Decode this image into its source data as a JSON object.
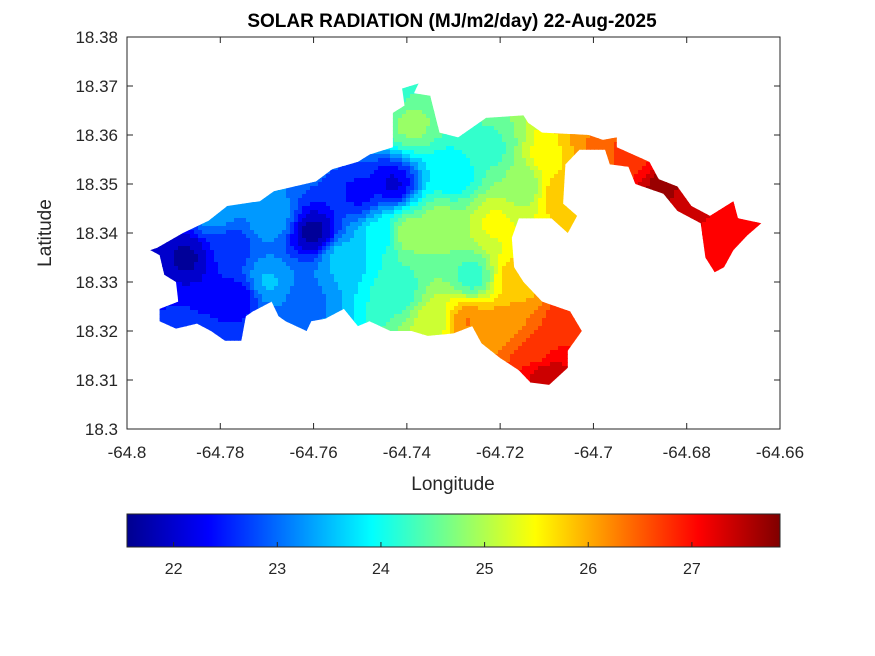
{
  "chart_data": {
    "type": "heatmap",
    "title": "SOLAR RADIATION (MJ/m2/day) 22-Aug-2025",
    "xlabel": "Longitude",
    "ylabel": "Latitude",
    "xlim": [
      -64.8,
      -64.66
    ],
    "ylim": [
      18.3,
      18.38
    ],
    "xticks": [
      -64.8,
      -64.78,
      -64.76,
      -64.74,
      -64.72,
      -64.7,
      -64.68,
      -64.66
    ],
    "xtick_labels": [
      "-64.8",
      "-64.78",
      "-64.76",
      "-64.74",
      "-64.72",
      "-64.7",
      "-64.68",
      "-64.66"
    ],
    "yticks": [
      18.3,
      18.31,
      18.32,
      18.33,
      18.34,
      18.35,
      18.36,
      18.37,
      18.38
    ],
    "ytick_labels": [
      "18.3",
      "18.31",
      "18.32",
      "18.33",
      "18.34",
      "18.35",
      "18.36",
      "18.37",
      "18.38"
    ],
    "grid": false,
    "colormap": "jet",
    "colorbar": {
      "orientation": "horizontal",
      "location": "bottom",
      "range": [
        21.55,
        27.85
      ],
      "ticks": [
        22,
        23,
        24,
        25,
        26,
        27
      ],
      "tick_labels": [
        "22",
        "23",
        "24",
        "25",
        "26",
        "27"
      ]
    },
    "field_samples": [
      {
        "lon": -64.787,
        "lat": 18.335,
        "value": 21.8
      },
      {
        "lon": -64.776,
        "lat": 18.327,
        "value": 22.3
      },
      {
        "lon": -64.778,
        "lat": 18.337,
        "value": 22.6
      },
      {
        "lon": -64.789,
        "lat": 18.323,
        "value": 22.5
      },
      {
        "lon": -64.781,
        "lat": 18.344,
        "value": 23.3
      },
      {
        "lon": -64.769,
        "lat": 18.343,
        "value": 23.4
      },
      {
        "lon": -64.77,
        "lat": 18.33,
        "value": 23.5
      },
      {
        "lon": -64.76,
        "lat": 18.34,
        "value": 21.7
      },
      {
        "lon": -64.762,
        "lat": 18.326,
        "value": 23.0
      },
      {
        "lon": -64.75,
        "lat": 18.348,
        "value": 22.4
      },
      {
        "lon": -64.743,
        "lat": 18.35,
        "value": 22.1
      },
      {
        "lon": -64.754,
        "lat": 18.335,
        "value": 23.6
      },
      {
        "lon": -64.745,
        "lat": 18.34,
        "value": 23.9
      },
      {
        "lon": -64.74,
        "lat": 18.34,
        "value": 25.0
      },
      {
        "lon": -64.742,
        "lat": 18.328,
        "value": 24.2
      },
      {
        "lon": -64.739,
        "lat": 18.362,
        "value": 24.8
      },
      {
        "lon": -64.744,
        "lat": 18.369,
        "value": 24.2
      },
      {
        "lon": -64.73,
        "lat": 18.352,
        "value": 23.8
      },
      {
        "lon": -64.733,
        "lat": 18.342,
        "value": 24.9
      },
      {
        "lon": -64.726,
        "lat": 18.331,
        "value": 24.2
      },
      {
        "lon": -64.734,
        "lat": 18.322,
        "value": 25.2
      },
      {
        "lon": -64.727,
        "lat": 18.322,
        "value": 26.3
      },
      {
        "lon": -64.722,
        "lat": 18.357,
        "value": 24.3
      },
      {
        "lon": -64.715,
        "lat": 18.35,
        "value": 24.7
      },
      {
        "lon": -64.721,
        "lat": 18.342,
        "value": 25.4
      },
      {
        "lon": -64.717,
        "lat": 18.331,
        "value": 25.8
      },
      {
        "lon": -64.719,
        "lat": 18.321,
        "value": 26.2
      },
      {
        "lon": -64.709,
        "lat": 18.355,
        "value": 25.6
      },
      {
        "lon": -64.707,
        "lat": 18.348,
        "value": 25.9
      },
      {
        "lon": -64.712,
        "lat": 18.315,
        "value": 26.8
      },
      {
        "lon": -64.71,
        "lat": 18.311,
        "value": 27.5
      },
      {
        "lon": -64.705,
        "lat": 18.322,
        "value": 26.9
      },
      {
        "lon": -64.7,
        "lat": 18.357,
        "value": 26.3
      },
      {
        "lon": -64.692,
        "lat": 18.356,
        "value": 26.8
      },
      {
        "lon": -64.685,
        "lat": 18.349,
        "value": 27.7
      },
      {
        "lon": -64.68,
        "lat": 18.346,
        "value": 27.3
      },
      {
        "lon": -64.67,
        "lat": 18.34,
        "value": 27.1
      },
      {
        "lon": -64.673,
        "lat": 18.334,
        "value": 27.2
      }
    ],
    "region_outline": [
      [
        -64.7935,
        18.337
      ],
      [
        -64.788,
        18.34
      ],
      [
        -64.7825,
        18.3425
      ],
      [
        -64.7785,
        18.3455
      ],
      [
        -64.7715,
        18.3465
      ],
      [
        -64.7685,
        18.3485
      ],
      [
        -64.7595,
        18.3505
      ],
      [
        -64.756,
        18.353
      ],
      [
        -64.7505,
        18.3545
      ],
      [
        -64.748,
        18.356
      ],
      [
        -64.743,
        18.3575
      ],
      [
        -64.743,
        18.3645
      ],
      [
        -64.7405,
        18.366
      ],
      [
        -64.741,
        18.3695
      ],
      [
        -64.7375,
        18.3705
      ],
      [
        -64.7385,
        18.3685
      ],
      [
        -64.735,
        18.368
      ],
      [
        -64.733,
        18.3605
      ],
      [
        -64.729,
        18.3595
      ],
      [
        -64.723,
        18.3635
      ],
      [
        -64.715,
        18.364
      ],
      [
        -64.714,
        18.3625
      ],
      [
        -64.711,
        18.3605
      ],
      [
        -64.701,
        18.36
      ],
      [
        -64.698,
        18.359
      ],
      [
        -64.695,
        18.3595
      ],
      [
        -64.695,
        18.3575
      ],
      [
        -64.688,
        18.3545
      ],
      [
        -64.686,
        18.351
      ],
      [
        -64.682,
        18.3495
      ],
      [
        -64.679,
        18.3455
      ],
      [
        -64.675,
        18.3435
      ],
      [
        -64.67,
        18.3465
      ],
      [
        -64.669,
        18.343
      ],
      [
        -64.664,
        18.342
      ],
      [
        -64.667,
        18.3395
      ],
      [
        -64.67,
        18.3365
      ],
      [
        -64.672,
        18.333
      ],
      [
        -64.674,
        18.332
      ],
      [
        -64.676,
        18.335
      ],
      [
        -64.677,
        18.342
      ],
      [
        -64.682,
        18.3445
      ],
      [
        -64.685,
        18.348
      ],
      [
        -64.688,
        18.349
      ],
      [
        -64.691,
        18.35
      ],
      [
        -64.6925,
        18.3535
      ],
      [
        -64.6965,
        18.354
      ],
      [
        -64.6975,
        18.357
      ],
      [
        -64.703,
        18.357
      ],
      [
        -64.706,
        18.354
      ],
      [
        -64.7065,
        18.346
      ],
      [
        -64.7035,
        18.3435
      ],
      [
        -64.7055,
        18.34
      ],
      [
        -64.709,
        18.343
      ],
      [
        -64.716,
        18.343
      ],
      [
        -64.7175,
        18.339
      ],
      [
        -64.717,
        18.333
      ],
      [
        -64.715,
        18.33
      ],
      [
        -64.711,
        18.326
      ],
      [
        -64.705,
        18.324
      ],
      [
        -64.7025,
        18.32
      ],
      [
        -64.7055,
        18.316
      ],
      [
        -64.7055,
        18.3125
      ],
      [
        -64.7095,
        18.309
      ],
      [
        -64.7135,
        18.3095
      ],
      [
        -64.716,
        18.312
      ],
      [
        -64.72,
        18.3145
      ],
      [
        -64.724,
        18.3175
      ],
      [
        -64.726,
        18.321
      ],
      [
        -64.73,
        18.3195
      ],
      [
        -64.7355,
        18.319
      ],
      [
        -64.739,
        18.32
      ],
      [
        -64.7435,
        18.32
      ],
      [
        -64.748,
        18.322
      ],
      [
        -64.7505,
        18.321
      ],
      [
        -64.7535,
        18.3245
      ],
      [
        -64.7575,
        18.3225
      ],
      [
        -64.7605,
        18.322
      ],
      [
        -64.7615,
        18.32
      ],
      [
        -64.766,
        18.322
      ],
      [
        -64.7675,
        18.323
      ],
      [
        -64.769,
        18.326
      ],
      [
        -64.773,
        18.324
      ],
      [
        -64.7745,
        18.323
      ],
      [
        -64.7755,
        18.318
      ],
      [
        -64.779,
        18.318
      ],
      [
        -64.782,
        18.32
      ],
      [
        -64.785,
        18.3215
      ],
      [
        -64.7895,
        18.3205
      ],
      [
        -64.793,
        18.322
      ],
      [
        -64.793,
        18.3245
      ],
      [
        -64.789,
        18.326
      ],
      [
        -64.7895,
        18.33
      ],
      [
        -64.792,
        18.3315
      ],
      [
        -64.793,
        18.3355
      ],
      [
        -64.795,
        18.3365
      ]
    ]
  }
}
